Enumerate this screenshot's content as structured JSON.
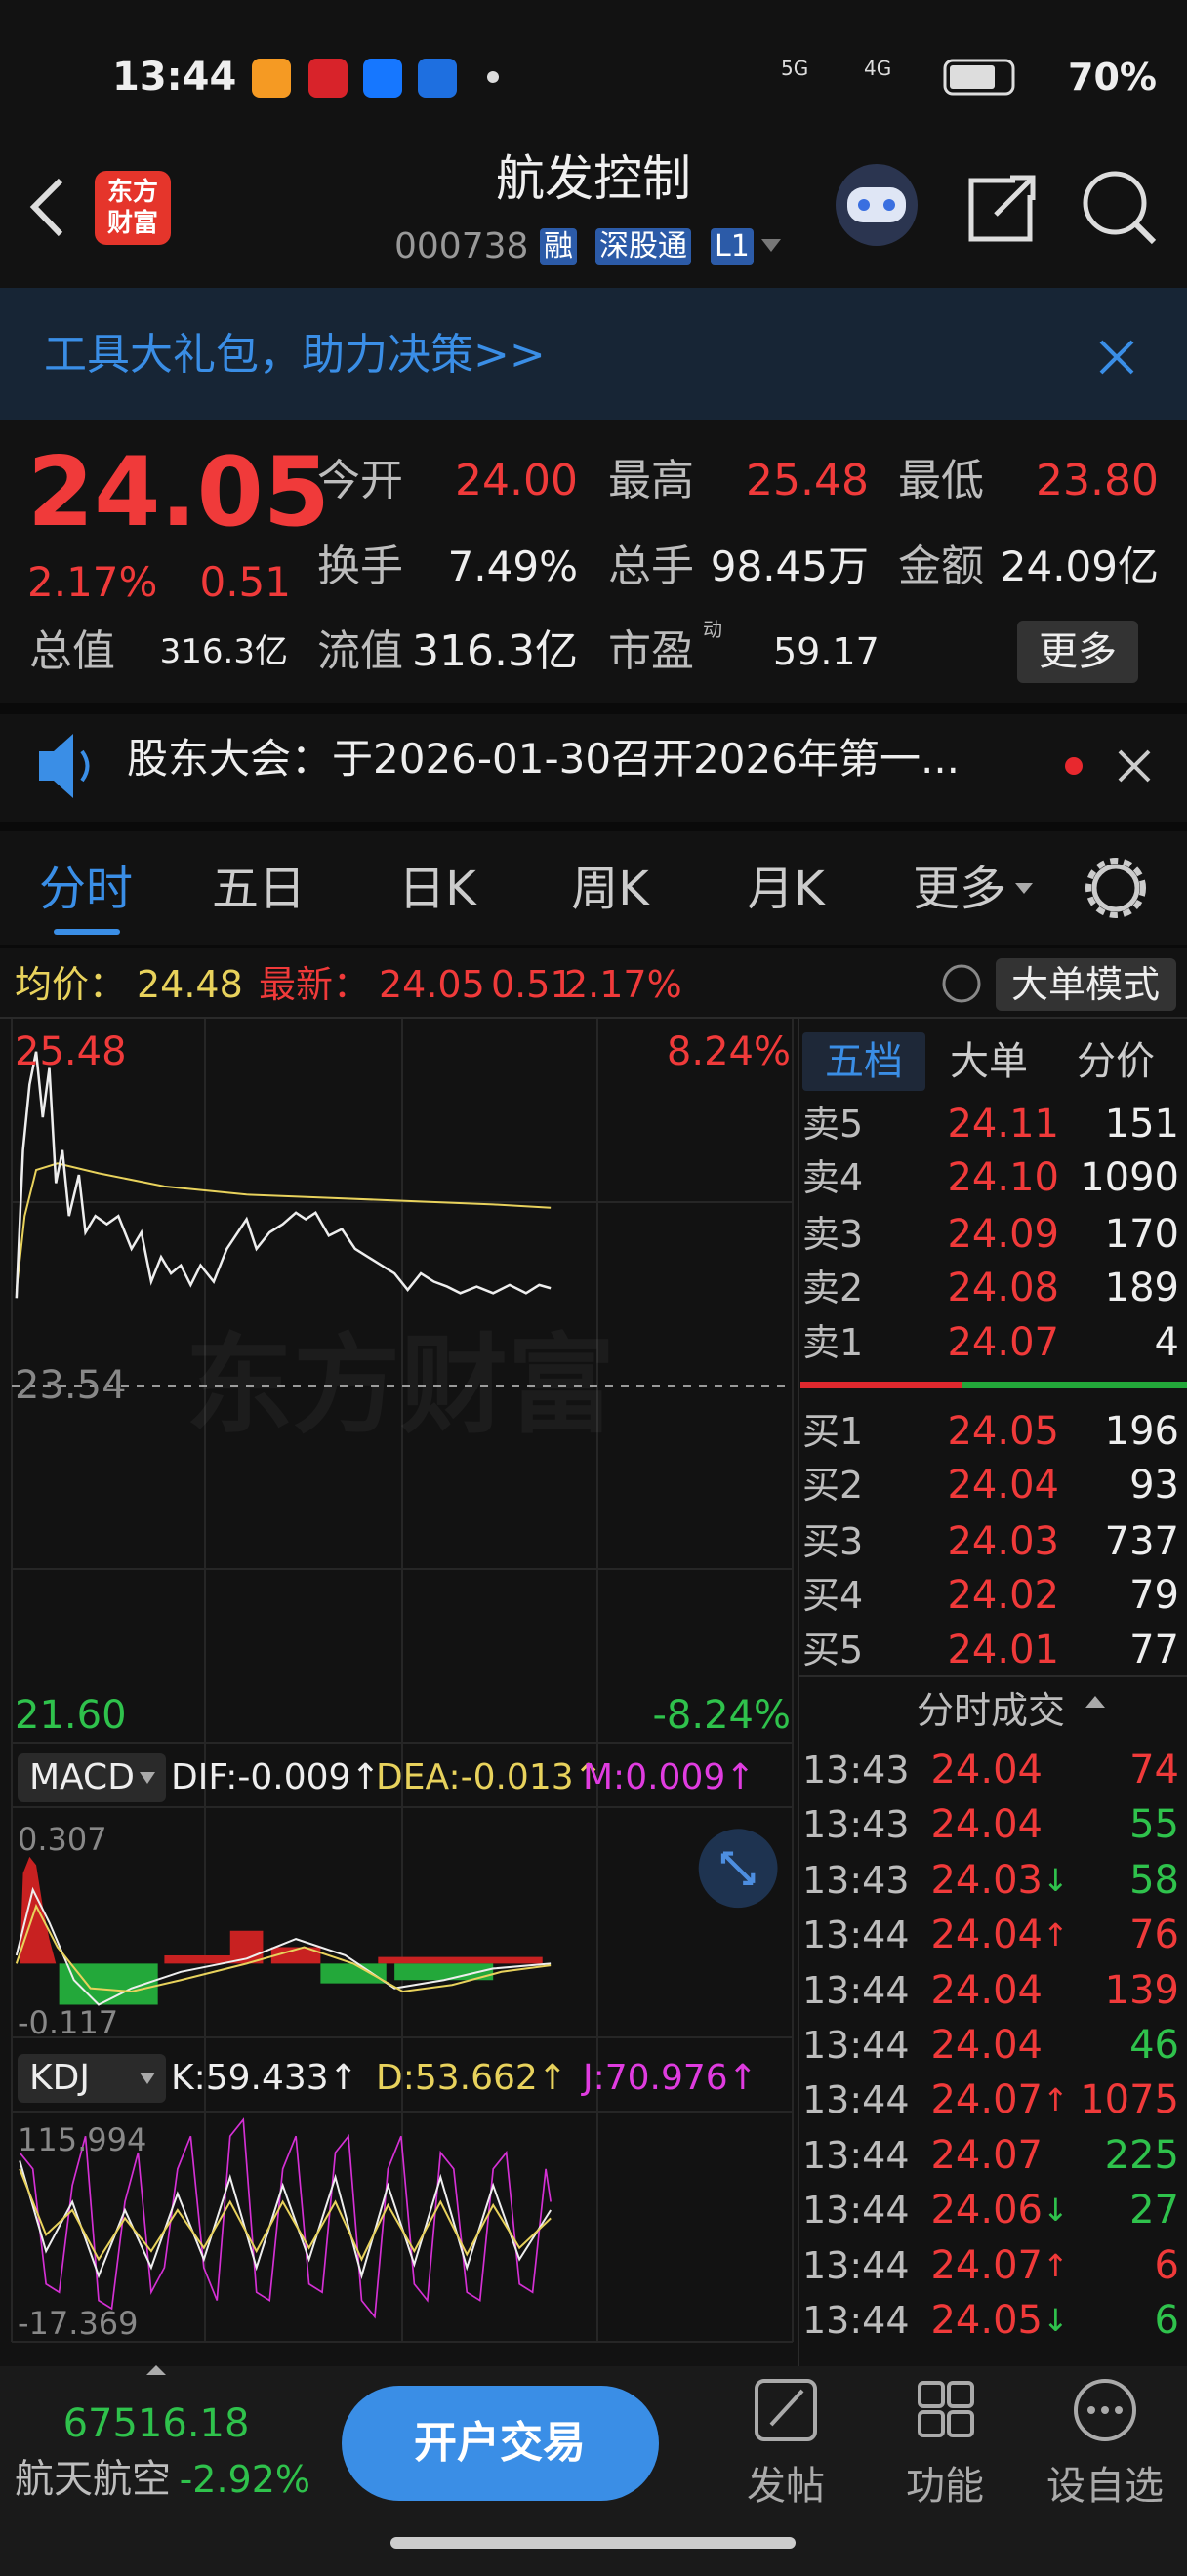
{
  "status_bar": {
    "time": "13:44",
    "net1": "5G",
    "net2": "4G",
    "battery": "70%"
  },
  "header": {
    "logo": [
      "东方",
      "财富"
    ],
    "title": "航发控制",
    "code": "000738",
    "tags": [
      "融",
      "深股通",
      "L1"
    ]
  },
  "banner": {
    "text": "工具大礼包，助力决策>>"
  },
  "quote": {
    "price": "24.05",
    "change_pct": "2.17%",
    "change": "0.51",
    "row1": [
      {
        "label": "今开",
        "value": "24.00"
      },
      {
        "label": "最高",
        "value": "25.48"
      },
      {
        "label": "最低",
        "value": "23.80"
      }
    ],
    "row2": [
      {
        "label": "换手",
        "value": "7.49%"
      },
      {
        "label": "总手",
        "value": "98.45万"
      },
      {
        "label": "金额",
        "value": "24.09亿"
      }
    ],
    "row3": [
      {
        "label": "总值",
        "value": "316.3亿"
      },
      {
        "label": "流值",
        "value": "316.3亿"
      },
      {
        "label": "市盈",
        "sup": "动",
        "value": "59.17"
      }
    ],
    "more": "更多"
  },
  "notice": {
    "text": "股东大会：于2026-01-30召开2026年第一..."
  },
  "tabs": [
    "分时",
    "五日",
    "日K",
    "周K",
    "月K",
    "更多"
  ],
  "info": {
    "avg_label": "均价：",
    "avg": "24.48",
    "last_label": "最新：",
    "last": "24.05",
    "change": "0.51",
    "change_pct": "2.17%",
    "mode": "大单模式"
  },
  "chart": {
    "watermark": "东方财富",
    "high": "25.48",
    "high_pct": "8.24%",
    "mid": "23.54",
    "low": "21.60",
    "low_pct": "-8.24%"
  },
  "macd": {
    "name": "MACD",
    "dif": "DIF:-0.009↑",
    "dea": "DEA:-0.013↑",
    "m": "M:0.009↑",
    "max": "0.307",
    "min": "-0.117"
  },
  "kdj": {
    "name": "KDJ",
    "k": "K:59.433↑",
    "d": "D:53.662↑",
    "j": "J:70.976↑",
    "max": "115.994",
    "min": "-17.369"
  },
  "book": {
    "tabs": [
      "五档",
      "大单",
      "分价"
    ],
    "asks": [
      [
        "卖5",
        "24.11",
        "151"
      ],
      [
        "卖4",
        "24.10",
        "1090"
      ],
      [
        "卖3",
        "24.09",
        "170"
      ],
      [
        "卖2",
        "24.08",
        "189"
      ],
      [
        "卖1",
        "24.07",
        "4"
      ]
    ],
    "bids": [
      [
        "买1",
        "24.05",
        "196"
      ],
      [
        "买2",
        "24.04",
        "93"
      ],
      [
        "买3",
        "24.03",
        "737"
      ],
      [
        "买4",
        "24.02",
        "79"
      ],
      [
        "买5",
        "24.01",
        "77"
      ]
    ]
  },
  "trades": {
    "title": "分时成交",
    "rows": [
      {
        "time": "13:43",
        "price": "24.04",
        "arrow": "",
        "volume": "74",
        "color": "red"
      },
      {
        "time": "13:43",
        "price": "24.04",
        "arrow": "",
        "volume": "55",
        "color": "green"
      },
      {
        "time": "13:43",
        "price": "24.03",
        "arrow": "↓",
        "volume": "58",
        "color": "green"
      },
      {
        "time": "13:44",
        "price": "24.04",
        "arrow": "↑",
        "volume": "76",
        "color": "red"
      },
      {
        "time": "13:44",
        "price": "24.04",
        "arrow": "",
        "volume": "139",
        "color": "red"
      },
      {
        "time": "13:44",
        "price": "24.04",
        "arrow": "",
        "volume": "46",
        "color": "green"
      },
      {
        "time": "13:44",
        "price": "24.07",
        "arrow": "↑",
        "volume": "1075",
        "color": "red"
      },
      {
        "time": "13:44",
        "price": "24.07",
        "arrow": "",
        "volume": "225",
        "color": "green"
      },
      {
        "time": "13:44",
        "price": "24.06",
        "arrow": "↓",
        "volume": "27",
        "color": "green"
      },
      {
        "time": "13:44",
        "price": "24.07",
        "arrow": "↑",
        "volume": "6",
        "color": "red"
      },
      {
        "time": "13:44",
        "price": "24.05",
        "arrow": "↓",
        "volume": "6",
        "color": "green"
      }
    ]
  },
  "bottom": {
    "index_value": "67516.18",
    "index_name": "航天航空",
    "index_change": "-2.92%",
    "cta": "开户交易",
    "actions": [
      "发帖",
      "功能",
      "设自选"
    ]
  }
}
